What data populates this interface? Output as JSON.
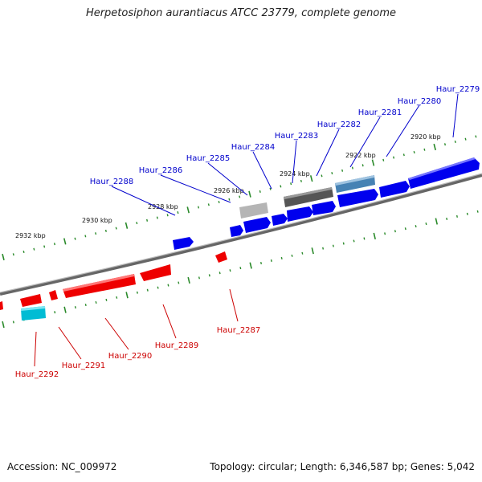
{
  "title": "Herpetosiphon aurantiacus ATCC 23779, complete genome",
  "footer": {
    "accession_label": "Accession:",
    "accession_value": "NC_009972",
    "topology_label": "Topology:",
    "topology_value": "circular",
    "length_label": "Length:",
    "length_value": "6,346,587 bp",
    "genes_label": "Genes:",
    "genes_value": "5,042"
  },
  "colors": {
    "forward_gene": "#0000ee",
    "reverse_gene": "#ee0000",
    "forward_label": "#0000cc",
    "reverse_label": "#cc0000",
    "backbone": "#777777",
    "tick": "#2a8a2a",
    "dark_gray_gene": "#555555",
    "light_gray_gene": "#bbbbbb",
    "steel_gene": "#4682b4",
    "cyan_gene": "#00bcd4"
  },
  "scale": {
    "unit": "kbp",
    "tick_labels": [
      "2932 kbp",
      "2930 kbp",
      "2928 kbp",
      "2926 kbp",
      "2924 kbp",
      "2922 kbp",
      "2920 kbp"
    ]
  },
  "genes": {
    "forward": [
      "Haur_2279",
      "Haur_2280",
      "Haur_2281",
      "Haur_2282",
      "Haur_2283",
      "Haur_2284",
      "Haur_2285",
      "Haur_2286",
      "Haur_2288"
    ],
    "reverse": [
      "Haur_2287",
      "Haur_2289",
      "Haur_2290",
      "Haur_2291",
      "Haur_2292"
    ]
  }
}
